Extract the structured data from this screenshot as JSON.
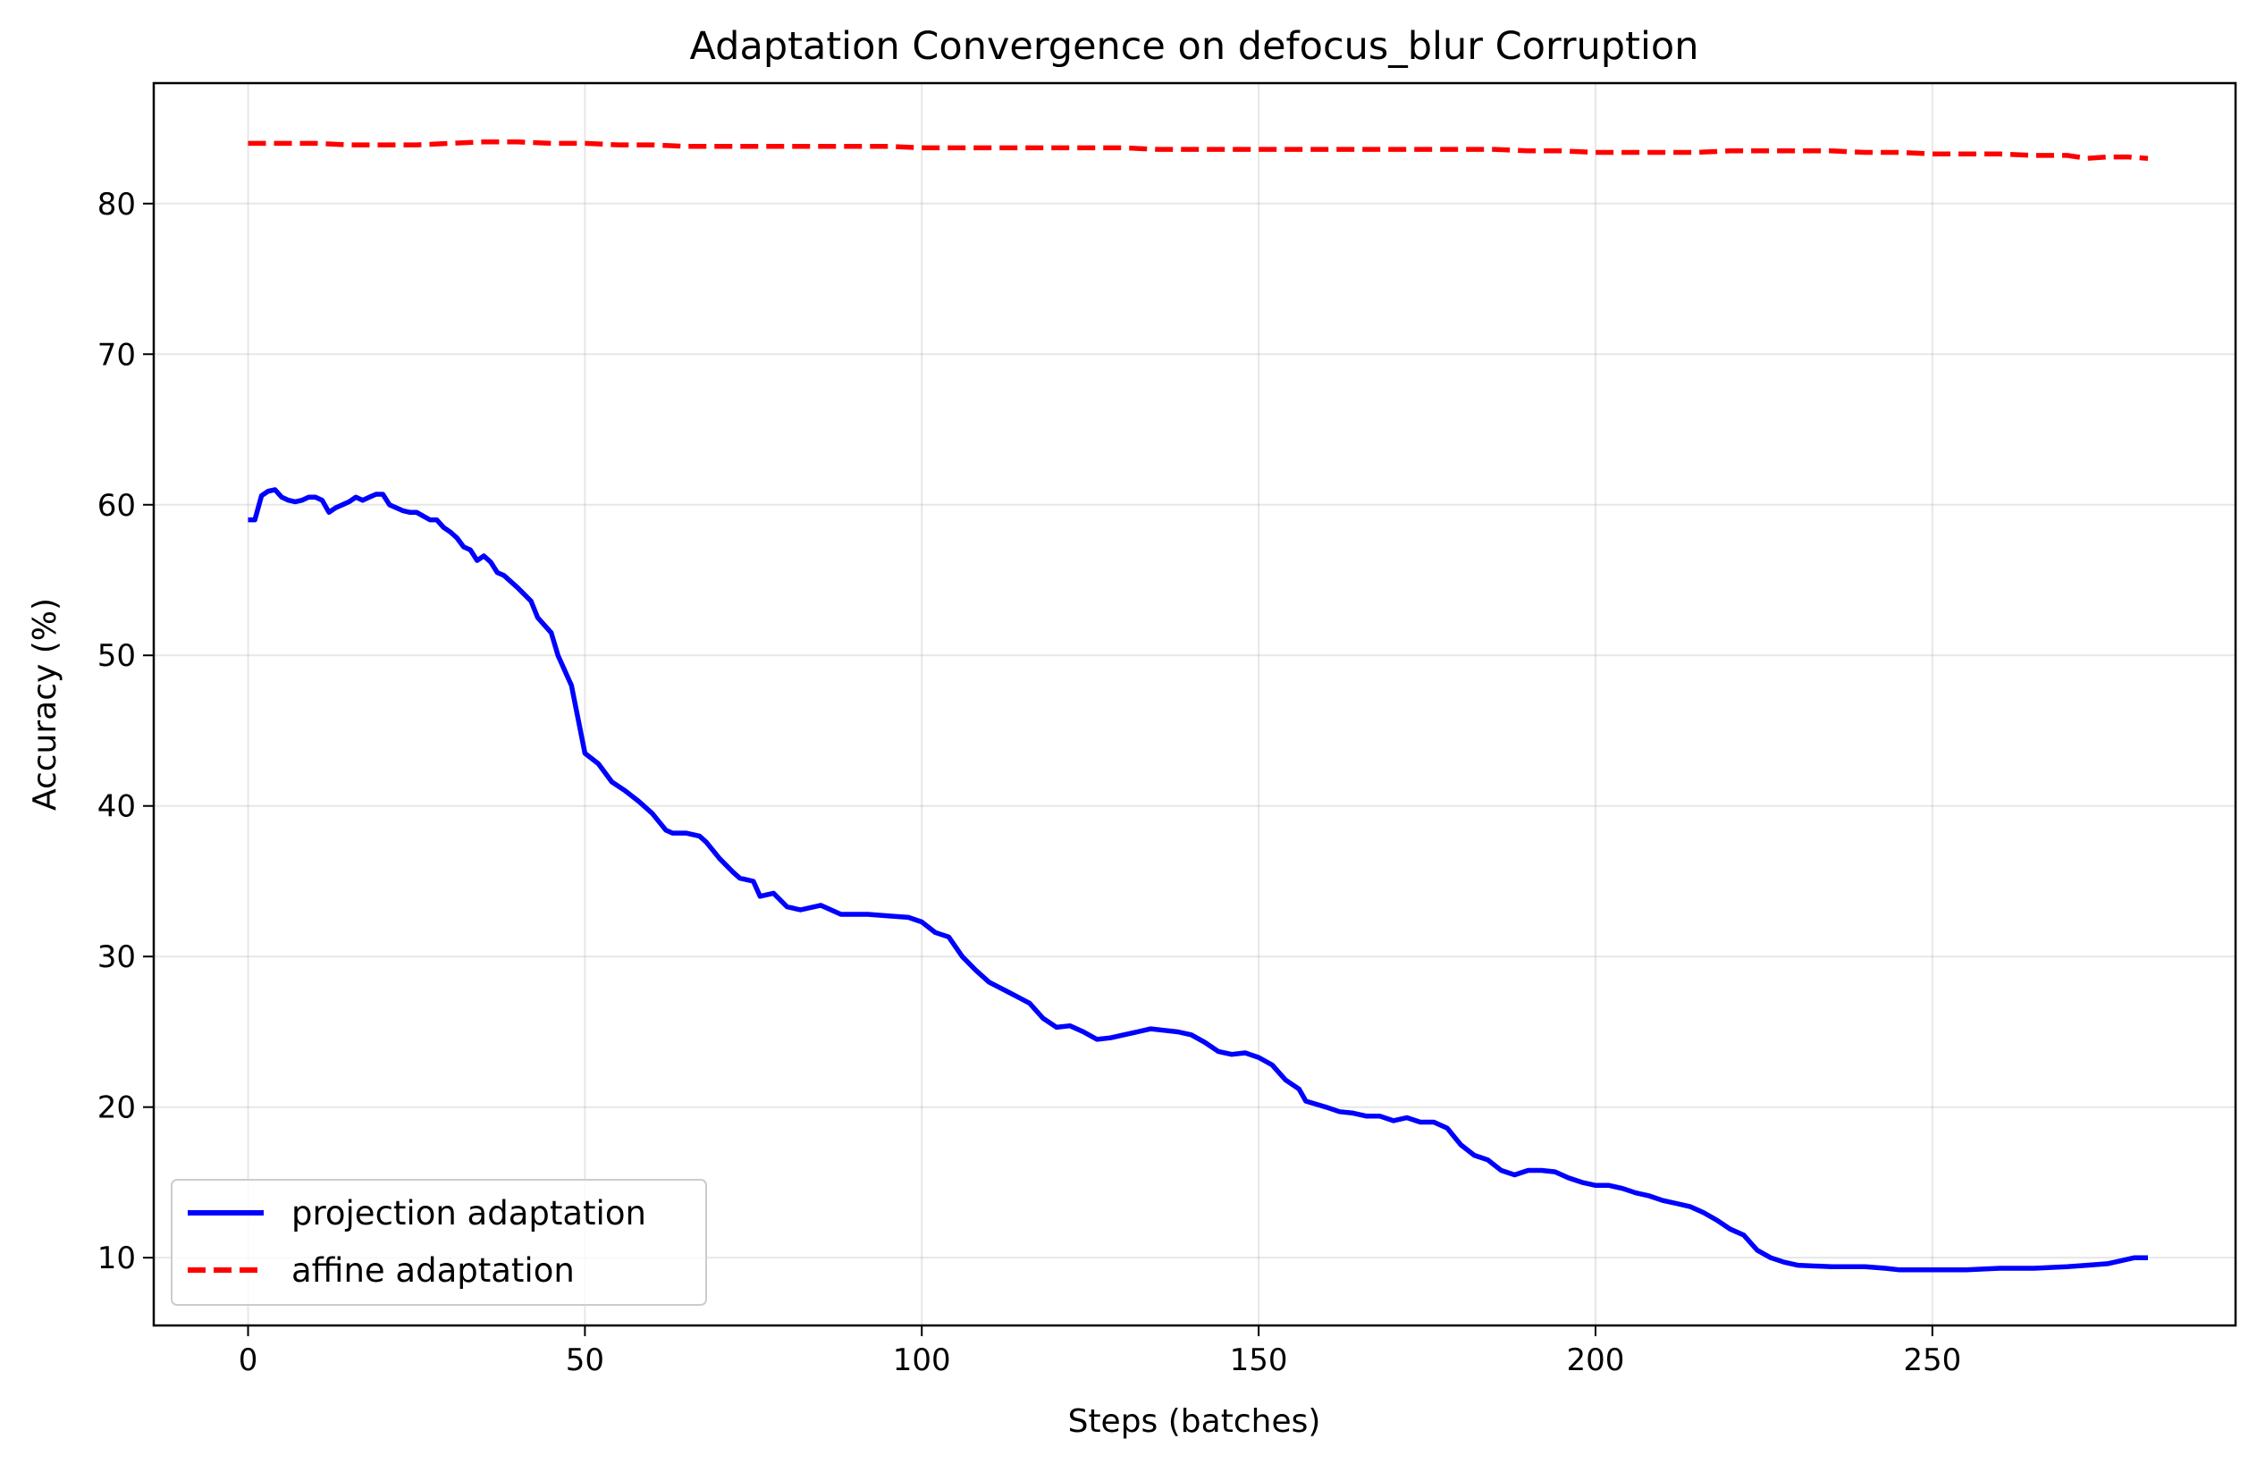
{
  "chart_data": {
    "type": "line",
    "title": "Adaptation Convergence on defocus_blur Corruption",
    "xlabel": "Steps (batches)",
    "ylabel": "Accuracy (%)",
    "xlim": [
      -14,
      295
    ],
    "ylim": [
      5.5,
      88
    ],
    "xticks": [
      0,
      50,
      100,
      150,
      200,
      250
    ],
    "yticks": [
      10,
      20,
      30,
      40,
      50,
      60,
      70,
      80
    ],
    "grid": true,
    "legend_position": "lower-left",
    "series": [
      {
        "name": "projection adaptation",
        "color": "#0000ff",
        "style": "solid",
        "x": [
          0,
          1,
          2,
          3,
          4,
          5,
          6,
          7,
          8,
          9,
          10,
          11,
          12,
          13,
          14,
          15,
          16,
          17,
          18,
          19,
          20,
          21,
          22,
          23,
          24,
          25,
          27,
          28,
          29,
          30,
          31,
          32,
          33,
          34,
          35,
          36,
          37,
          38,
          40,
          42,
          43,
          45,
          46,
          48,
          50,
          52,
          54,
          56,
          58,
          60,
          62,
          63,
          65,
          67,
          68,
          70,
          72,
          73,
          75,
          76,
          78,
          80,
          82,
          85,
          88,
          92,
          95,
          98,
          100,
          102,
          104,
          106,
          108,
          110,
          113,
          116,
          118,
          120,
          122,
          124,
          126,
          128,
          130,
          132,
          134,
          136,
          138,
          140,
          142,
          144,
          146,
          148,
          150,
          152,
          154,
          156,
          157,
          160,
          162,
          164,
          166,
          168,
          170,
          172,
          174,
          176,
          178,
          180,
          182,
          184,
          186,
          188,
          190,
          192,
          194,
          196,
          198,
          200,
          202,
          204,
          206,
          208,
          210,
          212,
          214,
          216,
          218,
          220,
          222,
          224,
          226,
          228,
          230,
          235,
          240,
          243,
          245,
          250,
          255,
          260,
          265,
          270,
          273,
          276,
          278,
          280,
          282
        ],
        "values": [
          59.0,
          59.0,
          60.6,
          60.9,
          61.0,
          60.5,
          60.3,
          60.2,
          60.3,
          60.5,
          60.5,
          60.3,
          59.5,
          59.8,
          60.0,
          60.2,
          60.5,
          60.3,
          60.5,
          60.7,
          60.7,
          60.0,
          59.8,
          59.6,
          59.5,
          59.5,
          59.0,
          59.0,
          58.5,
          58.2,
          57.8,
          57.2,
          57.0,
          56.3,
          56.6,
          56.2,
          55.5,
          55.3,
          54.5,
          53.6,
          52.5,
          51.5,
          50.0,
          48.0,
          43.5,
          42.8,
          41.6,
          41.0,
          40.3,
          39.5,
          38.4,
          38.2,
          38.2,
          38.0,
          37.6,
          36.5,
          35.6,
          35.2,
          35.0,
          34.0,
          34.2,
          33.3,
          33.1,
          33.4,
          32.8,
          32.8,
          32.7,
          32.6,
          32.3,
          31.6,
          31.3,
          30.0,
          29.1,
          28.3,
          27.6,
          26.9,
          25.9,
          25.3,
          25.4,
          25.0,
          24.5,
          24.6,
          24.8,
          25.0,
          25.2,
          25.1,
          25.0,
          24.8,
          24.3,
          23.7,
          23.5,
          23.6,
          23.3,
          22.8,
          21.8,
          21.2,
          20.4,
          20.0,
          19.7,
          19.6,
          19.4,
          19.4,
          19.1,
          19.3,
          19.0,
          19.0,
          18.6,
          17.5,
          16.8,
          16.5,
          15.8,
          15.5,
          15.8,
          15.8,
          15.7,
          15.3,
          15.0,
          14.8,
          14.8,
          14.6,
          14.3,
          14.1,
          13.8,
          13.6,
          13.4,
          13.0,
          12.5,
          11.9,
          11.5,
          10.5,
          10.0,
          9.7,
          9.5,
          9.4,
          9.4,
          9.3,
          9.2,
          9.2,
          9.2,
          9.3,
          9.3,
          9.4,
          9.5,
          9.6,
          9.8,
          10.0,
          10.0
        ]
      },
      {
        "name": "affine adaptation",
        "color": "#ff0000",
        "style": "dashed",
        "x": [
          0,
          5,
          10,
          15,
          20,
          25,
          30,
          35,
          40,
          45,
          50,
          55,
          60,
          65,
          70,
          75,
          80,
          85,
          90,
          95,
          100,
          105,
          110,
          115,
          120,
          125,
          130,
          135,
          140,
          145,
          150,
          155,
          160,
          165,
          170,
          175,
          180,
          185,
          190,
          195,
          200,
          205,
          210,
          215,
          220,
          225,
          230,
          235,
          240,
          245,
          250,
          255,
          260,
          265,
          270,
          273,
          276,
          279,
          282
        ],
        "values": [
          84.0,
          84.0,
          84.0,
          83.9,
          83.9,
          83.9,
          84.0,
          84.1,
          84.1,
          84.0,
          84.0,
          83.9,
          83.9,
          83.8,
          83.8,
          83.8,
          83.8,
          83.8,
          83.8,
          83.8,
          83.7,
          83.7,
          83.7,
          83.7,
          83.7,
          83.7,
          83.7,
          83.6,
          83.6,
          83.6,
          83.6,
          83.6,
          83.6,
          83.6,
          83.6,
          83.6,
          83.6,
          83.6,
          83.5,
          83.5,
          83.4,
          83.4,
          83.4,
          83.4,
          83.5,
          83.5,
          83.5,
          83.5,
          83.4,
          83.4,
          83.3,
          83.3,
          83.3,
          83.2,
          83.2,
          83.0,
          83.1,
          83.1,
          83.0
        ]
      }
    ]
  }
}
